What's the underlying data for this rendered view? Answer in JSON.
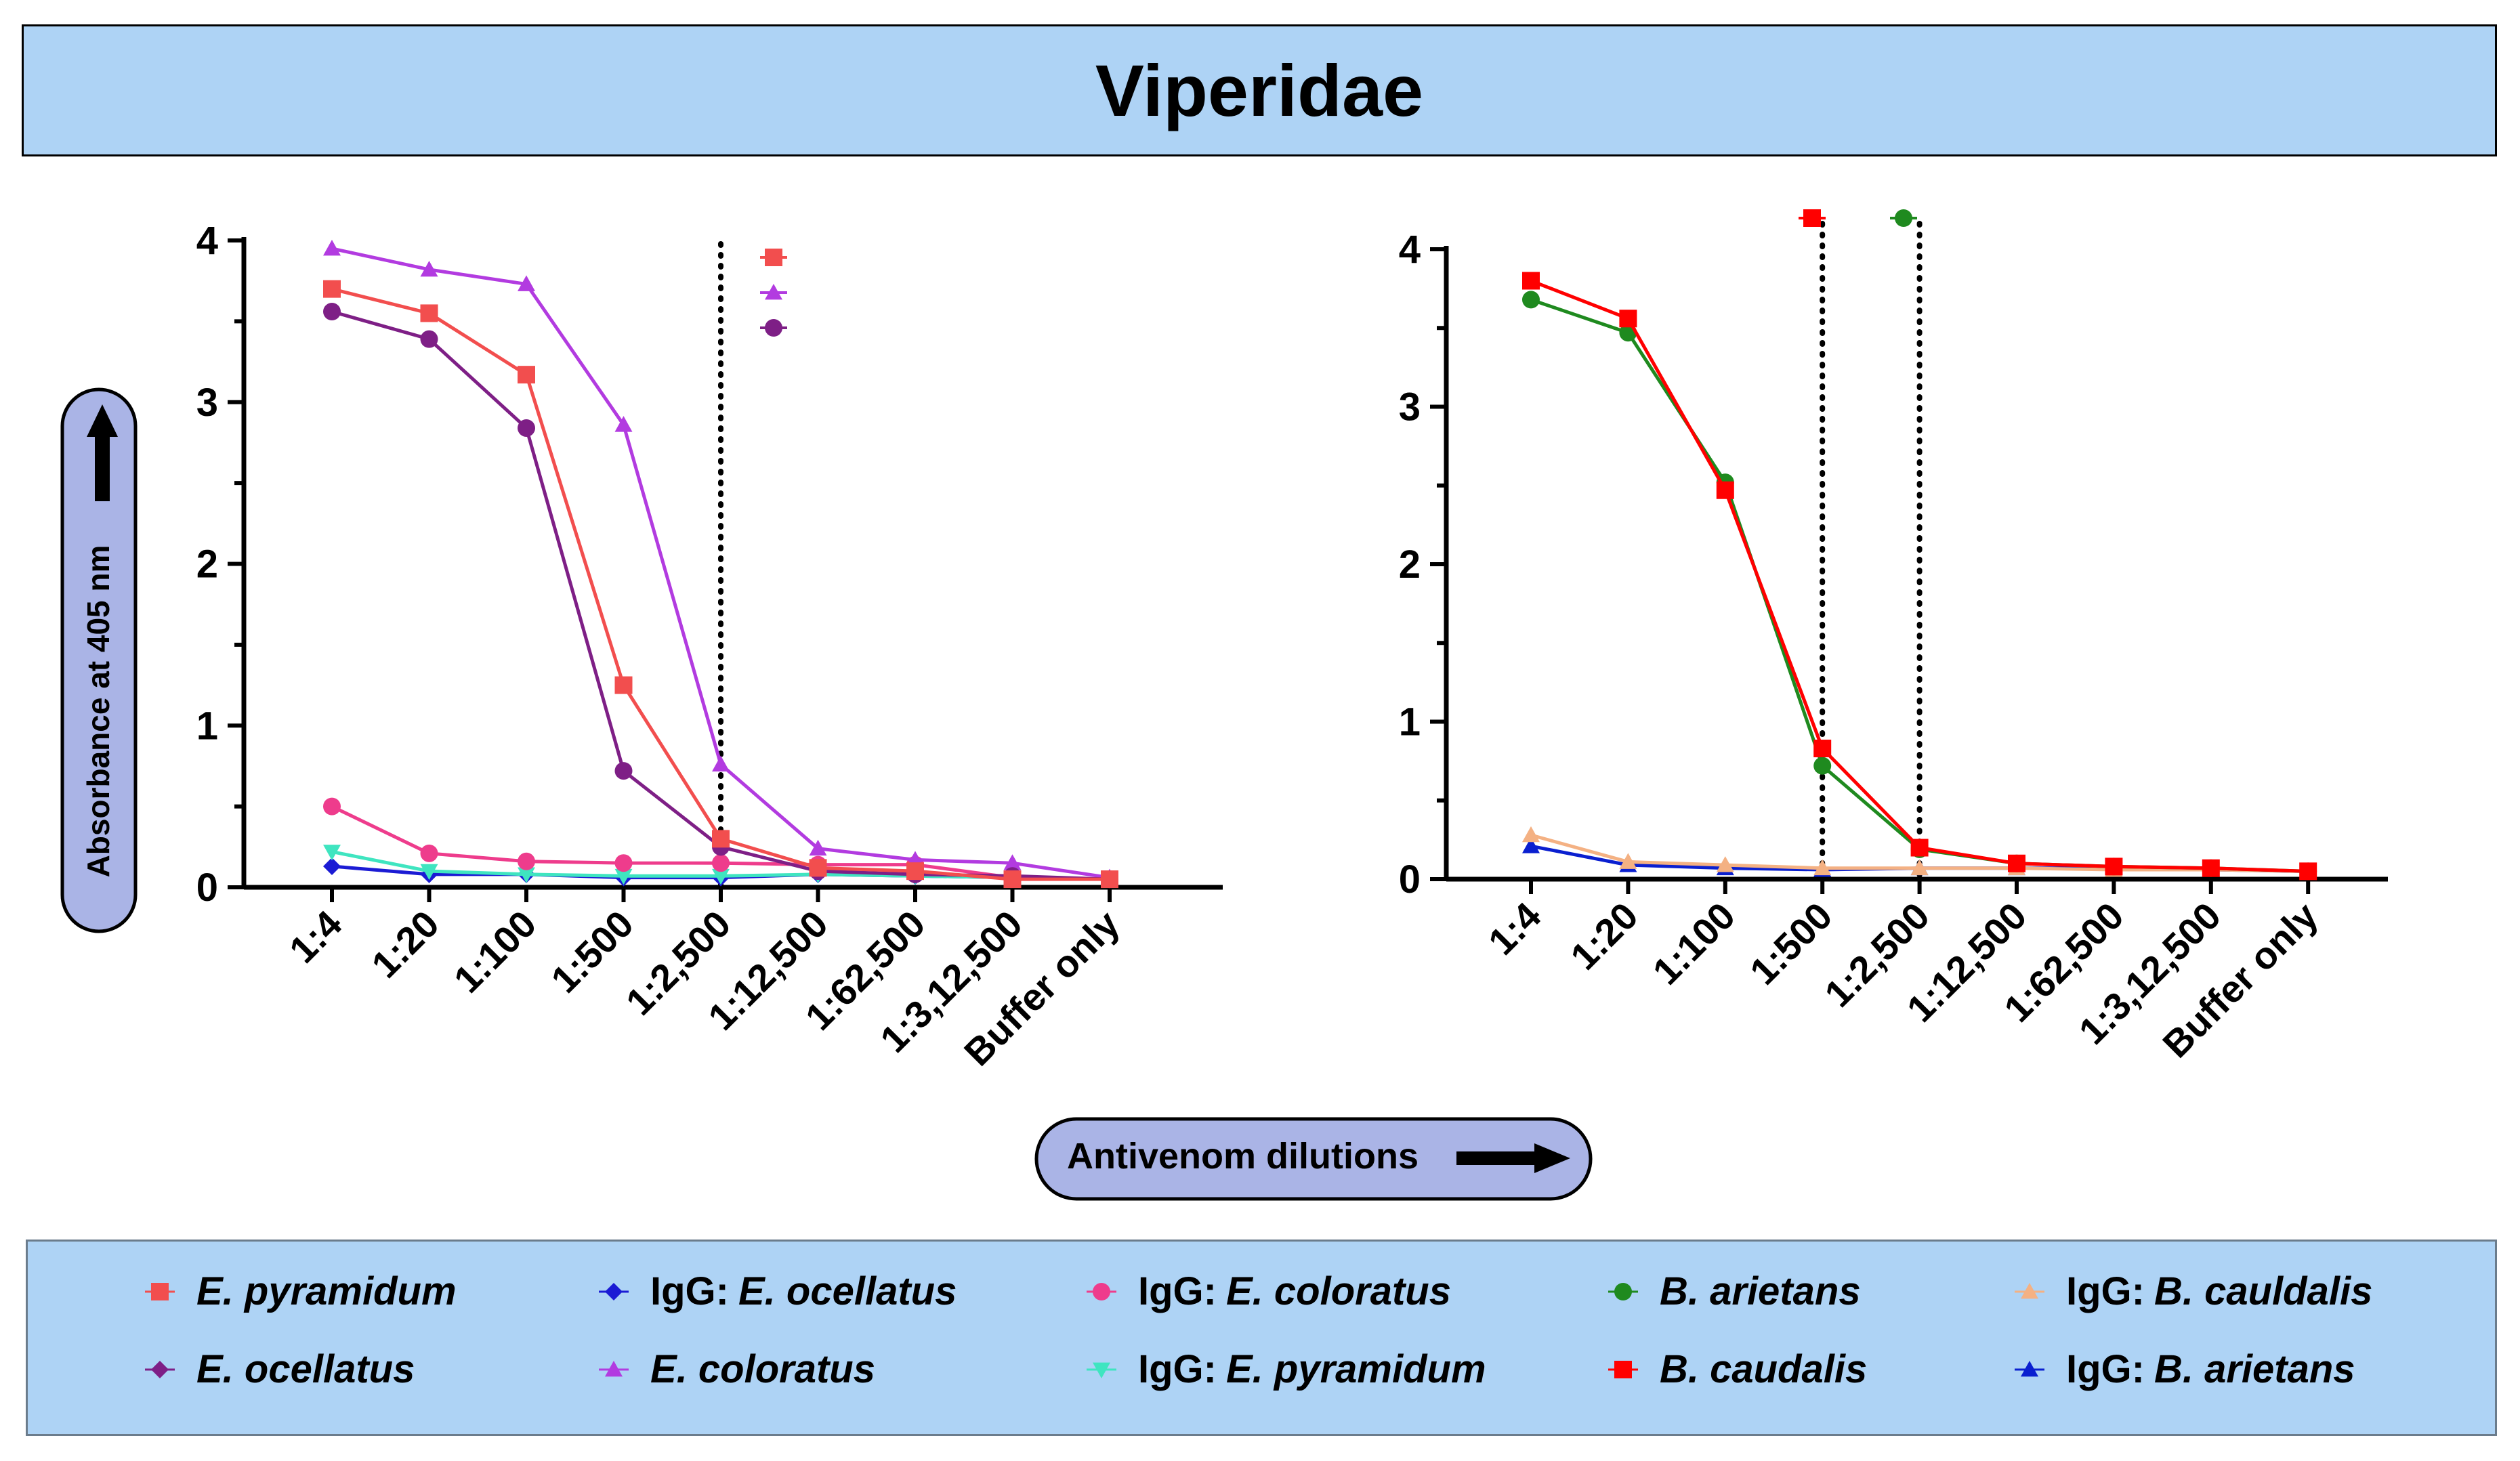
{
  "title": "Viperidae",
  "y_axis_label": "Absorbance at 405 nm",
  "x_axis_label": "Antivenom dilutions",
  "legend": [
    {
      "prefix": "",
      "name": "E. pyramidum",
      "color": "#f24e4e",
      "marker": "square"
    },
    {
      "prefix": "IgG:",
      "name": "E. ocellatus",
      "color": "#1b1bd4",
      "marker": "diamond"
    },
    {
      "prefix": "IgG:",
      "name": "E. coloratus",
      "color": "#ee3c8c",
      "marker": "circle"
    },
    {
      "prefix": "",
      "name": "B. arietans",
      "color": "#1f8a1f",
      "marker": "circle"
    },
    {
      "prefix": "IgG:",
      "name": "B. cauldalis",
      "color": "#f4b183",
      "marker": "triangle"
    },
    {
      "prefix": "",
      "name": "E. ocellatus",
      "color": "#7e1f86",
      "marker": "diamond"
    },
    {
      "prefix": "",
      "name": "E. coloratus",
      "color": "#b23be0",
      "marker": "triangle"
    },
    {
      "prefix": "IgG:",
      "name": "E. pyramidum",
      "color": "#3fe5c0",
      "marker": "triangle-down"
    },
    {
      "prefix": "",
      "name": "B. caudalis",
      "color": "#ff0000",
      "marker": "square"
    },
    {
      "prefix": "IgG:",
      "name": "B. arietans",
      "color": "#0a1fd0",
      "marker": "triangle"
    }
  ],
  "chart_data": [
    {
      "type": "line",
      "categories": [
        "1:4",
        "1:20",
        "1:100",
        "1:500",
        "1:2,500",
        "1:12,500",
        "1:62,500",
        "1:3,12,500",
        "Buffer only"
      ],
      "ylim": [
        0,
        4
      ],
      "yticks": [
        0,
        1,
        2,
        3,
        4
      ],
      "endpoint_line_category": [
        "1:2,500"
      ],
      "top_markers": [
        "E. pyramidum",
        "E. coloratus",
        "E. ocellatus"
      ],
      "series": [
        {
          "name": "E. pyramidum",
          "color": "#f24e4e",
          "marker": "square",
          "values": [
            3.7,
            3.55,
            3.17,
            1.25,
            0.3,
            0.12,
            0.1,
            0.05,
            0.05
          ]
        },
        {
          "name": "E. ocellatus",
          "color": "#7e1f86",
          "marker": "circle",
          "values": [
            3.56,
            3.39,
            2.84,
            0.72,
            0.25,
            0.1,
            0.08,
            0.07,
            0.05
          ]
        },
        {
          "name": "E. coloratus",
          "color": "#b23be0",
          "marker": "triangle",
          "values": [
            3.95,
            3.82,
            3.73,
            2.86,
            0.76,
            0.24,
            0.17,
            0.15,
            0.06
          ]
        },
        {
          "name": "IgG: E. coloratus",
          "color": "#ee3c8c",
          "marker": "circle",
          "values": [
            0.5,
            0.21,
            0.16,
            0.15,
            0.15,
            0.14,
            0.14,
            0.06,
            0.05
          ]
        },
        {
          "name": "IgG: E. pyramidum",
          "color": "#3fe5c0",
          "marker": "triangle-down",
          "values": [
            0.22,
            0.1,
            0.08,
            0.07,
            0.07,
            0.08,
            0.07,
            0.06,
            0.05
          ]
        },
        {
          "name": "IgG: E. ocellatus",
          "color": "#1b1bd4",
          "marker": "diamond",
          "values": [
            0.13,
            0.08,
            0.08,
            0.06,
            0.06,
            0.08,
            0.07,
            0.06,
            0.05
          ]
        }
      ]
    },
    {
      "type": "line",
      "categories": [
        "1:4",
        "1:20",
        "1:100",
        "1:500",
        "1:2,500",
        "1:12,500",
        "1:62,500",
        "1:3,12,500",
        "Buffer only"
      ],
      "ylim": [
        0,
        4
      ],
      "yticks": [
        0,
        1,
        2,
        3,
        4
      ],
      "endpoint_line_category": [
        "1:500",
        "1:2,500"
      ],
      "top_markers": [
        "B. caudalis",
        "B. arietans"
      ],
      "series": [
        {
          "name": "B. caudalis",
          "color": "#ff0000",
          "marker": "square",
          "values": [
            3.8,
            3.56,
            2.47,
            0.83,
            0.2,
            0.1,
            0.08,
            0.07,
            0.05
          ]
        },
        {
          "name": "B. arietans",
          "color": "#1f8a1f",
          "marker": "circle",
          "values": [
            3.68,
            3.47,
            2.52,
            0.72,
            0.19,
            0.1,
            0.08,
            0.07,
            0.05
          ]
        },
        {
          "name": "IgG: B. cauldalis",
          "color": "#f4b183",
          "marker": "triangle",
          "values": [
            0.28,
            0.11,
            0.09,
            0.07,
            0.07,
            0.07,
            0.06,
            0.06,
            0.05
          ]
        },
        {
          "name": "IgG: B. arietans",
          "color": "#0a1fd0",
          "marker": "triangle",
          "values": [
            0.21,
            0.09,
            0.07,
            0.06,
            0.07,
            0.07,
            0.07,
            0.06,
            0.05
          ]
        }
      ]
    }
  ]
}
